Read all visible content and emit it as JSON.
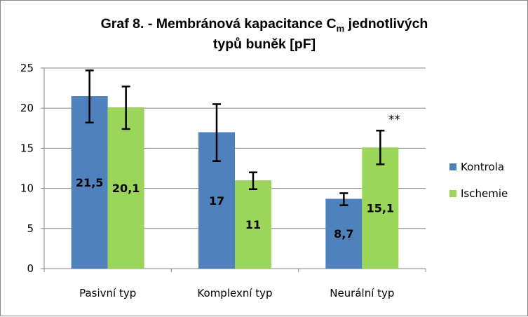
{
  "chart_data": {
    "type": "bar",
    "title": {
      "main": "Graf 8. - Membránová kapacitance C",
      "subscript": "m",
      "rest": " jednotlivých",
      "line2": "typů buněk [pF]"
    },
    "xlabel": "",
    "ylabel": "",
    "categories": [
      "Pasivní typ",
      "Komplexní typ",
      "Neurální typ"
    ],
    "series": [
      {
        "name": "Kontrola",
        "color": "#4F81BD",
        "values": [
          21.5,
          17,
          8.7
        ],
        "data_labels": [
          "21,5",
          "17",
          "8,7"
        ],
        "error_low": [
          18.2,
          13.4,
          7.9
        ],
        "error_high": [
          24.7,
          20.5,
          9.4
        ]
      },
      {
        "name": "Ischemie",
        "color": "#9BD559",
        "values": [
          20.1,
          11,
          15.1
        ],
        "data_labels": [
          "20,1",
          "11",
          "15,1"
        ],
        "error_low": [
          17.4,
          9.9,
          13.0
        ],
        "error_high": [
          22.7,
          12.0,
          17.2
        ]
      }
    ],
    "ylim": [
      0,
      25
    ],
    "yticks": [
      0,
      5,
      10,
      15,
      20,
      25
    ],
    "grid": true,
    "legend": "right",
    "annotations": [
      {
        "text": "**",
        "series": 1,
        "category": 2
      }
    ]
  }
}
